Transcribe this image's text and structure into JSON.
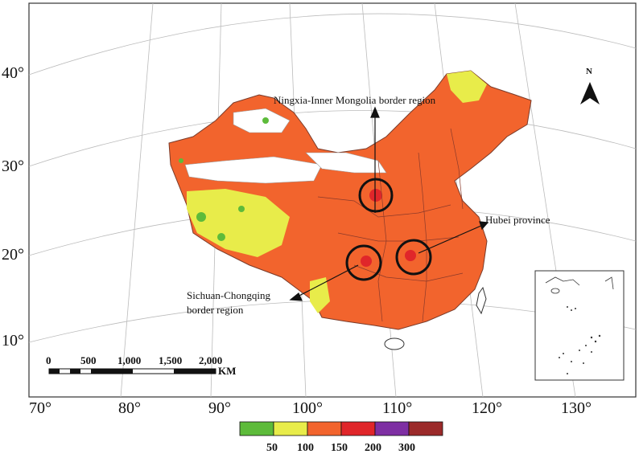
{
  "map": {
    "north_label": "N",
    "longitude_labels": [
      "70°",
      "80°",
      "90°",
      "100°",
      "110°",
      "120°",
      "130°"
    ],
    "latitude_labels": [
      "40°",
      "30°",
      "20°",
      "10°"
    ],
    "annotations": {
      "ningxia": "Ningxia-Inner  Mongolia border region",
      "hubei": "Hubei province",
      "sichuan_line1": "Sichuan-Chongqing",
      "sichuan_line2": "border region"
    },
    "scale_bar": {
      "ticks": [
        "0",
        "500",
        "1,000",
        "1,500",
        "2,000"
      ],
      "unit": "KM"
    },
    "legend": {
      "colors": [
        "#5dbb3a",
        "#e8ec4a",
        "#f2642d",
        "#e0262a",
        "#7e2fa3",
        "#9b2a2a"
      ],
      "labels": [
        "50",
        "100",
        "150",
        "200",
        "300"
      ]
    }
  }
}
